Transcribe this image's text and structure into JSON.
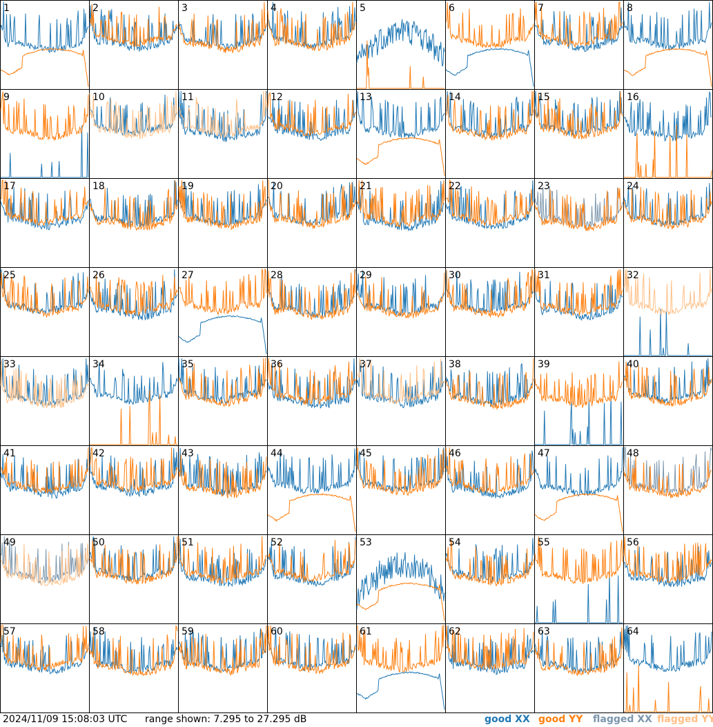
{
  "timestamp": "2024/11/09 15:08:03 UTC",
  "range_text": "range shown: 7.295 to 27.295 dB",
  "legend": {
    "good_xx": "good XX",
    "good_yy": "good YY",
    "flagged_xx": "flagged XX",
    "flagged_yy": "flagged YY"
  },
  "colors": {
    "good_xx": "#1f77b4",
    "good_yy": "#ff7f0e",
    "flagged_xx": "#7b96ad",
    "flagged_yy": "#ffbf86"
  },
  "chart_data": {
    "type": "line",
    "layout": "small-multiples 8x8",
    "ylim": [
      7.295,
      27.295
    ],
    "yunit": "dB",
    "grid": false,
    "legend_position": "bottom-right",
    "series": [
      "XX",
      "YY"
    ],
    "panels": [
      {
        "id": "1",
        "xx": "normal",
        "yy": "dip"
      },
      {
        "id": "2",
        "xx": "normal",
        "yy": "normal"
      },
      {
        "id": "3",
        "xx": "normal",
        "yy": "normal"
      },
      {
        "id": "4",
        "xx": "normal",
        "yy": "normal"
      },
      {
        "id": "5",
        "xx": "noisy",
        "yy": "spikes"
      },
      {
        "id": "6",
        "xx": "dip",
        "yy": "normal"
      },
      {
        "id": "7",
        "xx": "normal",
        "yy": "normal"
      },
      {
        "id": "8",
        "xx": "normal",
        "yy": "dip"
      },
      {
        "id": "9",
        "xx": "spikes",
        "yy": "normal"
      },
      {
        "id": "10",
        "xx": "normal",
        "yy": "flagged"
      },
      {
        "id": "11",
        "xx": "normal",
        "yy": "flagged"
      },
      {
        "id": "12",
        "xx": "normal",
        "yy": "normal"
      },
      {
        "id": "13",
        "xx": "normal",
        "yy": "dip"
      },
      {
        "id": "14",
        "xx": "normal",
        "yy": "normal"
      },
      {
        "id": "15",
        "xx": "normal",
        "yy": "normal"
      },
      {
        "id": "16",
        "xx": "normal",
        "yy": "spikes"
      },
      {
        "id": "17",
        "xx": "normal",
        "yy": "normal"
      },
      {
        "id": "18",
        "xx": "normal",
        "yy": "normal"
      },
      {
        "id": "19",
        "xx": "normal",
        "yy": "normal"
      },
      {
        "id": "20",
        "xx": "normal",
        "yy": "normal"
      },
      {
        "id": "21",
        "xx": "normal",
        "yy": "normal"
      },
      {
        "id": "22",
        "xx": "normal",
        "yy": "normal"
      },
      {
        "id": "23",
        "xx": "flagged",
        "yy": "normal"
      },
      {
        "id": "24",
        "xx": "normal",
        "yy": "normal"
      },
      {
        "id": "25",
        "xx": "normal",
        "yy": "normal"
      },
      {
        "id": "26",
        "xx": "normal",
        "yy": "normal"
      },
      {
        "id": "27",
        "xx": "dip",
        "yy": "normal"
      },
      {
        "id": "28",
        "xx": "normal",
        "yy": "normal"
      },
      {
        "id": "29",
        "xx": "normal",
        "yy": "normal"
      },
      {
        "id": "30",
        "xx": "normal",
        "yy": "normal"
      },
      {
        "id": "31",
        "xx": "normal",
        "yy": "normal"
      },
      {
        "id": "32",
        "xx": "spikes",
        "yy": "flagged"
      },
      {
        "id": "33",
        "xx": "normal",
        "yy": "flagged"
      },
      {
        "id": "34",
        "xx": "normal",
        "yy": "spikes"
      },
      {
        "id": "35",
        "xx": "normal",
        "yy": "normal"
      },
      {
        "id": "36",
        "xx": "normal",
        "yy": "normal"
      },
      {
        "id": "37",
        "xx": "normal",
        "yy": "flagged"
      },
      {
        "id": "38",
        "xx": "normal",
        "yy": "normal"
      },
      {
        "id": "39",
        "xx": "spikes",
        "yy": "normal"
      },
      {
        "id": "40",
        "xx": "normal",
        "yy": "normal"
      },
      {
        "id": "41",
        "xx": "normal",
        "yy": "normal"
      },
      {
        "id": "42",
        "xx": "normal",
        "yy": "normal"
      },
      {
        "id": "43",
        "xx": "normal",
        "yy": "normal"
      },
      {
        "id": "44",
        "xx": "normal",
        "yy": "dip"
      },
      {
        "id": "45",
        "xx": "normal",
        "yy": "normal"
      },
      {
        "id": "46",
        "xx": "normal",
        "yy": "normal"
      },
      {
        "id": "47",
        "xx": "normal",
        "yy": "dip"
      },
      {
        "id": "48",
        "xx": "flagged",
        "yy": "normal"
      },
      {
        "id": "49",
        "xx": "flagged",
        "yy": "flagged"
      },
      {
        "id": "50",
        "xx": "normal",
        "yy": "normal"
      },
      {
        "id": "51",
        "xx": "normal",
        "yy": "normal"
      },
      {
        "id": "52",
        "xx": "normal",
        "yy": "normal"
      },
      {
        "id": "53",
        "xx": "noisy",
        "yy": "dip"
      },
      {
        "id": "54",
        "xx": "normal",
        "yy": "normal"
      },
      {
        "id": "55",
        "xx": "spikes",
        "yy": "normal"
      },
      {
        "id": "56",
        "xx": "normal",
        "yy": "normal"
      },
      {
        "id": "57",
        "xx": "normal",
        "yy": "normal"
      },
      {
        "id": "58",
        "xx": "normal",
        "yy": "normal"
      },
      {
        "id": "59",
        "xx": "normal",
        "yy": "normal"
      },
      {
        "id": "60",
        "xx": "normal",
        "yy": "normal"
      },
      {
        "id": "61",
        "xx": "dip",
        "yy": "normal"
      },
      {
        "id": "62",
        "xx": "normal",
        "yy": "normal"
      },
      {
        "id": "63",
        "xx": "normal",
        "yy": "normal"
      },
      {
        "id": "64",
        "xx": "normal",
        "yy": "spikes"
      }
    ]
  }
}
